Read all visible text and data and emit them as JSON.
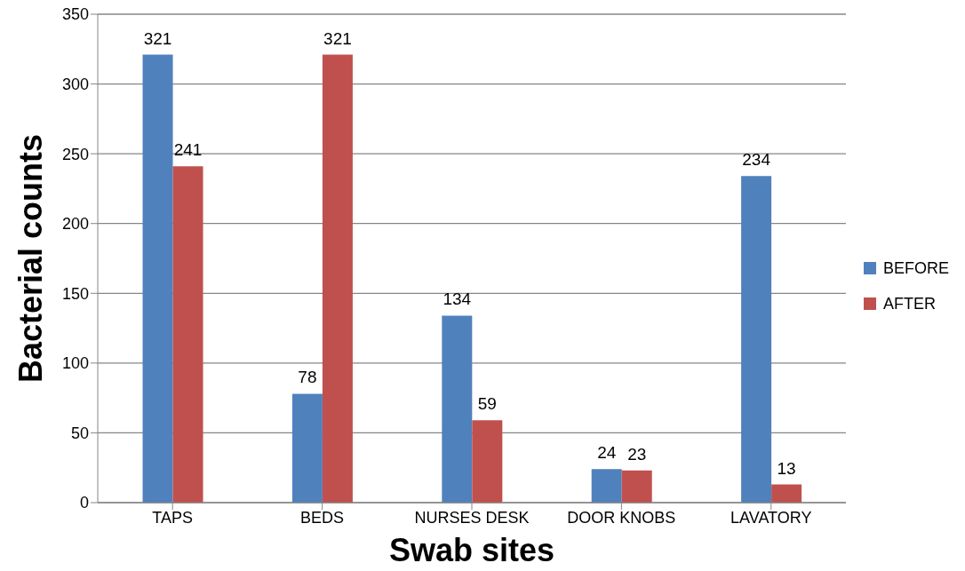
{
  "chart_data": {
    "type": "bar",
    "xlabel": "Swab sites",
    "ylabel": "Bacterial counts",
    "categories": [
      "TAPS",
      "BEDS",
      "NURSES DESK",
      "DOOR KNOBS",
      "LAVATORY"
    ],
    "series": [
      {
        "name": "BEFORE",
        "color": "#4f81bd",
        "values": [
          321,
          78,
          134,
          24,
          234
        ]
      },
      {
        "name": "AFTER",
        "color": "#c0504d",
        "values": [
          241,
          321,
          59,
          23,
          13
        ]
      }
    ],
    "ylim": [
      0,
      350
    ],
    "yticks": [
      0,
      50,
      100,
      150,
      200,
      250,
      300,
      350
    ],
    "grid": "y",
    "legend": "right",
    "data_labels": true
  }
}
